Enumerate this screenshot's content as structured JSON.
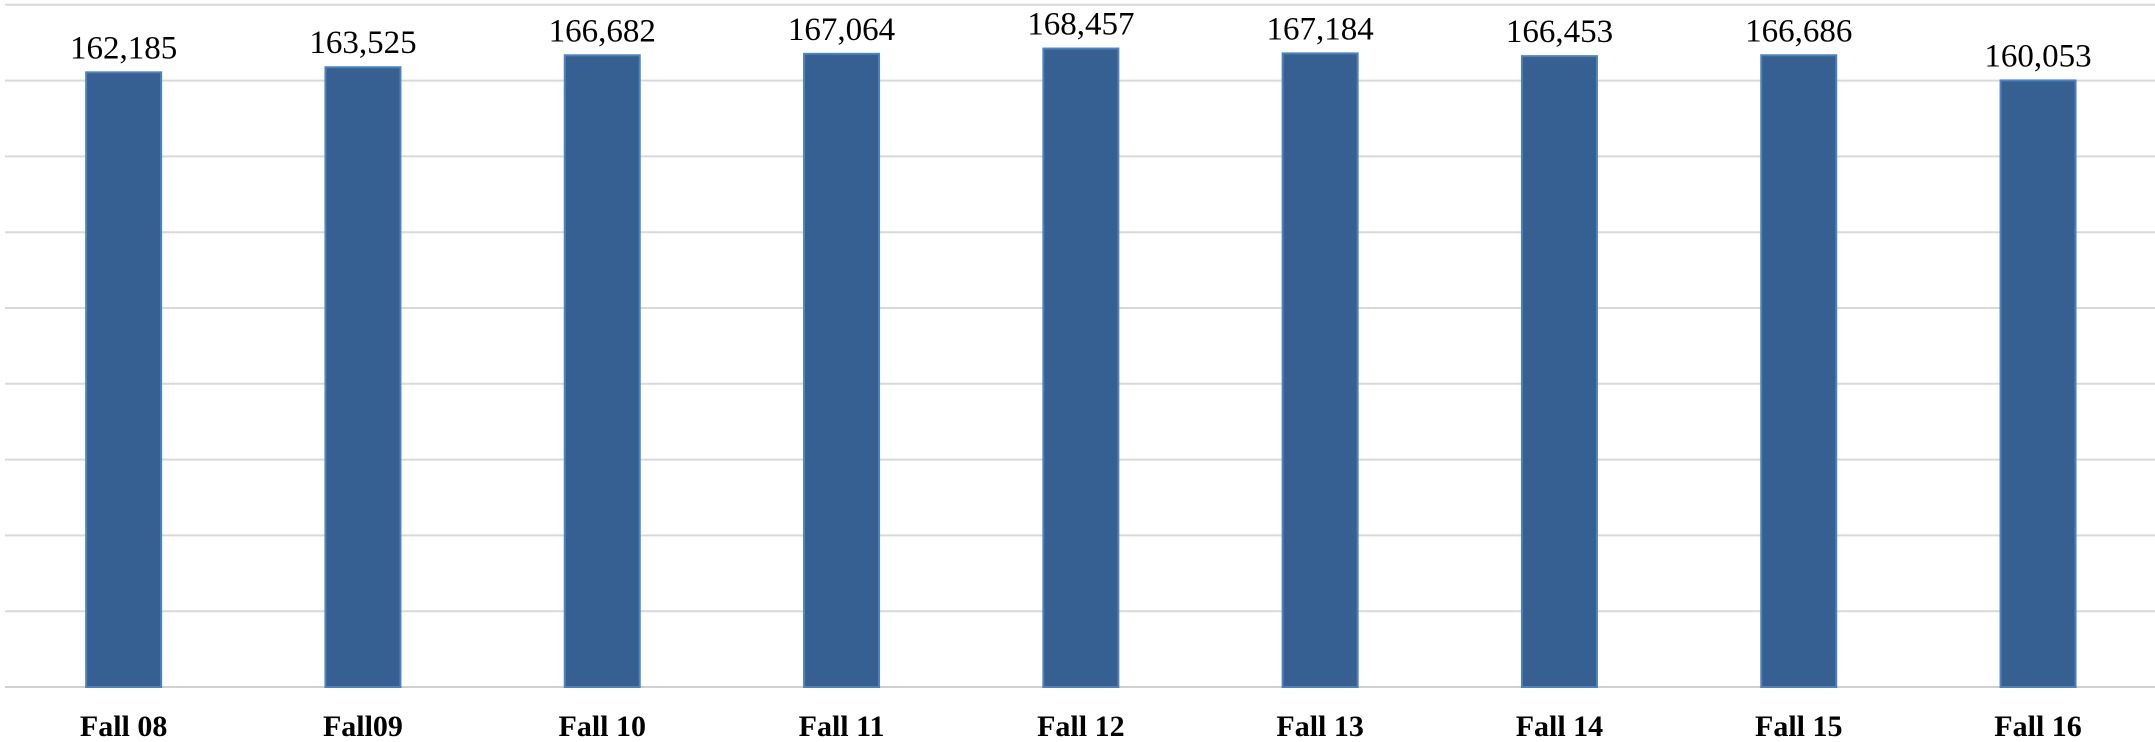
{
  "chart_data": {
    "type": "bar",
    "categories": [
      "Fall 08",
      "Fall09",
      "Fall 10",
      "Fall 11",
      "Fall 12",
      "Fall 13",
      "Fall 14",
      "Fall 15",
      "Fall 16"
    ],
    "values": [
      162185,
      163525,
      166682,
      167064,
      168457,
      167184,
      166453,
      166686,
      160053
    ],
    "data_labels": [
      "162,185",
      "163,525",
      "166,682",
      "167,064",
      "168,457",
      "167,184",
      "166,453",
      "166,686",
      "160,053"
    ],
    "title": "",
    "xlabel": "",
    "ylabel": "",
    "ylim": [
      0,
      180000
    ],
    "gridlines": true,
    "legend": "none",
    "colors": {
      "bar_fill": "#376092",
      "bar_edge": "#4f81bd",
      "grid": "#d9d9d9"
    }
  }
}
